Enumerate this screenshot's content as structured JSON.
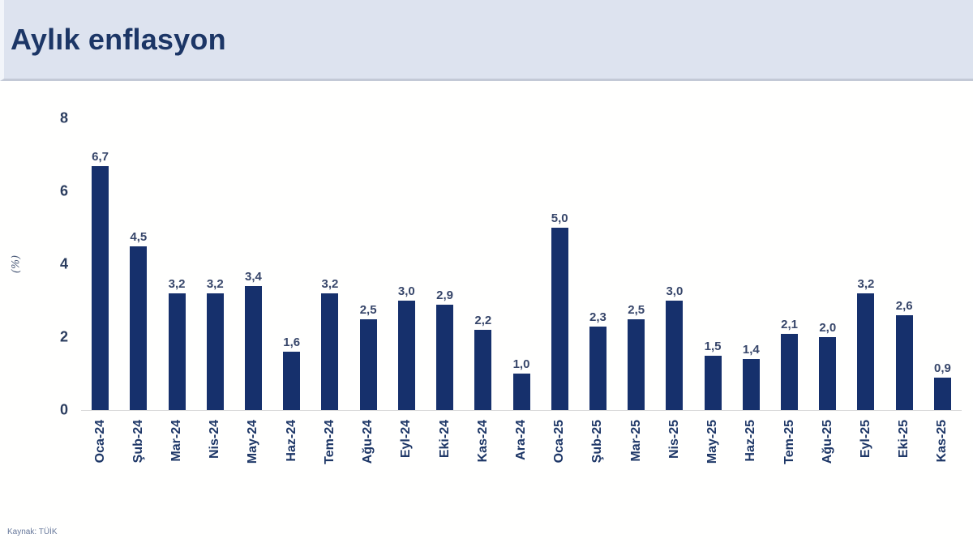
{
  "header": {
    "title": "Aylık enflasyon"
  },
  "footer": {
    "source": "Kaynak: TÜİK"
  },
  "chart_data": {
    "type": "bar",
    "title": "Aylık enflasyon",
    "xlabel": "",
    "ylabel": "(%)",
    "ylim": [
      0,
      8
    ],
    "yticks": [
      0,
      2,
      4,
      6,
      8
    ],
    "grid": false,
    "legend": "none",
    "bar_color": "#16306c",
    "categories": [
      "Oca-24",
      "Şub-24",
      "Mar-24",
      "Nis-24",
      "May-24",
      "Haz-24",
      "Tem-24",
      "Ağu-24",
      "Eyl-24",
      "Eki-24",
      "Kas-24",
      "Ara-24",
      "Oca-25",
      "Şub-25",
      "Mar-25",
      "Nis-25",
      "May-25",
      "Haz-25",
      "Tem-25",
      "Ağu-25",
      "Eyl-25",
      "Eki-25",
      "Kas-25"
    ],
    "values": [
      6.7,
      4.5,
      3.2,
      3.2,
      3.4,
      1.6,
      3.2,
      2.5,
      3.0,
      2.9,
      2.2,
      1.0,
      5.0,
      2.3,
      2.5,
      3.0,
      1.5,
      1.4,
      2.1,
      2.0,
      3.2,
      2.6,
      0.9
    ],
    "value_labels": [
      "6,7",
      "4,5",
      "3,2",
      "3,2",
      "3,4",
      "1,6",
      "3,2",
      "2,5",
      "3,0",
      "2,9",
      "2,2",
      "1,0",
      "5,0",
      "2,3",
      "2,5",
      "3,0",
      "1,5",
      "1,4",
      "2,1",
      "2,0",
      "3,2",
      "2,6",
      "0,9"
    ]
  }
}
